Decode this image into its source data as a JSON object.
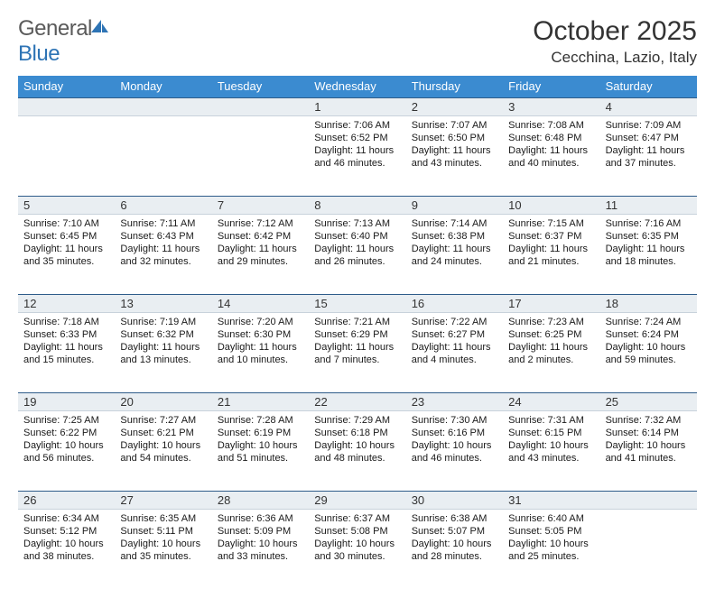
{
  "logo": {
    "text1": "General",
    "text2": "Blue"
  },
  "title": "October 2025",
  "location": "Cecchina, Lazio, Italy",
  "colors": {
    "header_bg": "#3b8bd0",
    "header_text": "#ffffff",
    "daynum_bg": "#e9eef2",
    "daynum_border_top": "#2e5c8a",
    "body_text": "#1a1a1a",
    "logo_gray": "#5a5a5a",
    "logo_blue": "#2e74b5"
  },
  "day_names": [
    "Sunday",
    "Monday",
    "Tuesday",
    "Wednesday",
    "Thursday",
    "Friday",
    "Saturday"
  ],
  "weeks": [
    {
      "nums": [
        "",
        "",
        "",
        "1",
        "2",
        "3",
        "4"
      ],
      "data": [
        null,
        null,
        null,
        {
          "sunrise": "Sunrise: 7:06 AM",
          "sunset": "Sunset: 6:52 PM",
          "d1": "Daylight: 11 hours",
          "d2": "and 46 minutes."
        },
        {
          "sunrise": "Sunrise: 7:07 AM",
          "sunset": "Sunset: 6:50 PM",
          "d1": "Daylight: 11 hours",
          "d2": "and 43 minutes."
        },
        {
          "sunrise": "Sunrise: 7:08 AM",
          "sunset": "Sunset: 6:48 PM",
          "d1": "Daylight: 11 hours",
          "d2": "and 40 minutes."
        },
        {
          "sunrise": "Sunrise: 7:09 AM",
          "sunset": "Sunset: 6:47 PM",
          "d1": "Daylight: 11 hours",
          "d2": "and 37 minutes."
        }
      ]
    },
    {
      "nums": [
        "5",
        "6",
        "7",
        "8",
        "9",
        "10",
        "11"
      ],
      "data": [
        {
          "sunrise": "Sunrise: 7:10 AM",
          "sunset": "Sunset: 6:45 PM",
          "d1": "Daylight: 11 hours",
          "d2": "and 35 minutes."
        },
        {
          "sunrise": "Sunrise: 7:11 AM",
          "sunset": "Sunset: 6:43 PM",
          "d1": "Daylight: 11 hours",
          "d2": "and 32 minutes."
        },
        {
          "sunrise": "Sunrise: 7:12 AM",
          "sunset": "Sunset: 6:42 PM",
          "d1": "Daylight: 11 hours",
          "d2": "and 29 minutes."
        },
        {
          "sunrise": "Sunrise: 7:13 AM",
          "sunset": "Sunset: 6:40 PM",
          "d1": "Daylight: 11 hours",
          "d2": "and 26 minutes."
        },
        {
          "sunrise": "Sunrise: 7:14 AM",
          "sunset": "Sunset: 6:38 PM",
          "d1": "Daylight: 11 hours",
          "d2": "and 24 minutes."
        },
        {
          "sunrise": "Sunrise: 7:15 AM",
          "sunset": "Sunset: 6:37 PM",
          "d1": "Daylight: 11 hours",
          "d2": "and 21 minutes."
        },
        {
          "sunrise": "Sunrise: 7:16 AM",
          "sunset": "Sunset: 6:35 PM",
          "d1": "Daylight: 11 hours",
          "d2": "and 18 minutes."
        }
      ]
    },
    {
      "nums": [
        "12",
        "13",
        "14",
        "15",
        "16",
        "17",
        "18"
      ],
      "data": [
        {
          "sunrise": "Sunrise: 7:18 AM",
          "sunset": "Sunset: 6:33 PM",
          "d1": "Daylight: 11 hours",
          "d2": "and 15 minutes."
        },
        {
          "sunrise": "Sunrise: 7:19 AM",
          "sunset": "Sunset: 6:32 PM",
          "d1": "Daylight: 11 hours",
          "d2": "and 13 minutes."
        },
        {
          "sunrise": "Sunrise: 7:20 AM",
          "sunset": "Sunset: 6:30 PM",
          "d1": "Daylight: 11 hours",
          "d2": "and 10 minutes."
        },
        {
          "sunrise": "Sunrise: 7:21 AM",
          "sunset": "Sunset: 6:29 PM",
          "d1": "Daylight: 11 hours",
          "d2": "and 7 minutes."
        },
        {
          "sunrise": "Sunrise: 7:22 AM",
          "sunset": "Sunset: 6:27 PM",
          "d1": "Daylight: 11 hours",
          "d2": "and 4 minutes."
        },
        {
          "sunrise": "Sunrise: 7:23 AM",
          "sunset": "Sunset: 6:25 PM",
          "d1": "Daylight: 11 hours",
          "d2": "and 2 minutes."
        },
        {
          "sunrise": "Sunrise: 7:24 AM",
          "sunset": "Sunset: 6:24 PM",
          "d1": "Daylight: 10 hours",
          "d2": "and 59 minutes."
        }
      ]
    },
    {
      "nums": [
        "19",
        "20",
        "21",
        "22",
        "23",
        "24",
        "25"
      ],
      "data": [
        {
          "sunrise": "Sunrise: 7:25 AM",
          "sunset": "Sunset: 6:22 PM",
          "d1": "Daylight: 10 hours",
          "d2": "and 56 minutes."
        },
        {
          "sunrise": "Sunrise: 7:27 AM",
          "sunset": "Sunset: 6:21 PM",
          "d1": "Daylight: 10 hours",
          "d2": "and 54 minutes."
        },
        {
          "sunrise": "Sunrise: 7:28 AM",
          "sunset": "Sunset: 6:19 PM",
          "d1": "Daylight: 10 hours",
          "d2": "and 51 minutes."
        },
        {
          "sunrise": "Sunrise: 7:29 AM",
          "sunset": "Sunset: 6:18 PM",
          "d1": "Daylight: 10 hours",
          "d2": "and 48 minutes."
        },
        {
          "sunrise": "Sunrise: 7:30 AM",
          "sunset": "Sunset: 6:16 PM",
          "d1": "Daylight: 10 hours",
          "d2": "and 46 minutes."
        },
        {
          "sunrise": "Sunrise: 7:31 AM",
          "sunset": "Sunset: 6:15 PM",
          "d1": "Daylight: 10 hours",
          "d2": "and 43 minutes."
        },
        {
          "sunrise": "Sunrise: 7:32 AM",
          "sunset": "Sunset: 6:14 PM",
          "d1": "Daylight: 10 hours",
          "d2": "and 41 minutes."
        }
      ]
    },
    {
      "nums": [
        "26",
        "27",
        "28",
        "29",
        "30",
        "31",
        ""
      ],
      "data": [
        {
          "sunrise": "Sunrise: 6:34 AM",
          "sunset": "Sunset: 5:12 PM",
          "d1": "Daylight: 10 hours",
          "d2": "and 38 minutes."
        },
        {
          "sunrise": "Sunrise: 6:35 AM",
          "sunset": "Sunset: 5:11 PM",
          "d1": "Daylight: 10 hours",
          "d2": "and 35 minutes."
        },
        {
          "sunrise": "Sunrise: 6:36 AM",
          "sunset": "Sunset: 5:09 PM",
          "d1": "Daylight: 10 hours",
          "d2": "and 33 minutes."
        },
        {
          "sunrise": "Sunrise: 6:37 AM",
          "sunset": "Sunset: 5:08 PM",
          "d1": "Daylight: 10 hours",
          "d2": "and 30 minutes."
        },
        {
          "sunrise": "Sunrise: 6:38 AM",
          "sunset": "Sunset: 5:07 PM",
          "d1": "Daylight: 10 hours",
          "d2": "and 28 minutes."
        },
        {
          "sunrise": "Sunrise: 6:40 AM",
          "sunset": "Sunset: 5:05 PM",
          "d1": "Daylight: 10 hours",
          "d2": "and 25 minutes."
        },
        null
      ]
    }
  ]
}
